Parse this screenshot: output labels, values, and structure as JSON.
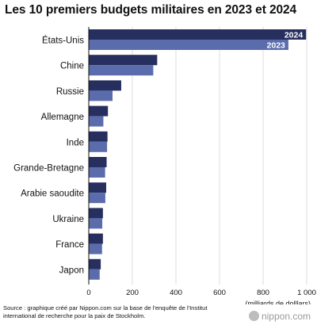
{
  "chart_data": {
    "type": "bar",
    "orientation": "horizontal",
    "title": "Les 10 premiers budgets militaires en 2023 et 2024",
    "xlabel": "(milliards de dolllars)",
    "ylabel": "",
    "xlim": [
      0,
      1000
    ],
    "x_ticks": [
      "0",
      "200",
      "400",
      "600",
      "800",
      "1 000"
    ],
    "grid": true,
    "categories": [
      "États-Unis",
      "Chine",
      "Russie",
      "Allemagne",
      "Inde",
      "Grande-Bretagne",
      "Arabie saoudite",
      "Ukraine",
      "France",
      "Japon"
    ],
    "series": [
      {
        "name": "2024",
        "color": "#262f5e",
        "values": [
          997,
          314,
          149,
          88,
          86,
          82,
          80,
          65,
          65,
          55
        ]
      },
      {
        "name": "2023",
        "color": "#5b6cac",
        "values": [
          916,
          296,
          109,
          67,
          84,
          75,
          76,
          62,
          61,
          50
        ]
      }
    ]
  },
  "source": "Source : graphique créé par Nippon.com sur la base de l'enquête de l'Institut international de recherche pour la paix de Stockholm.",
  "logo": "nippon.com",
  "logo_icon": "nippon-logo-icon"
}
